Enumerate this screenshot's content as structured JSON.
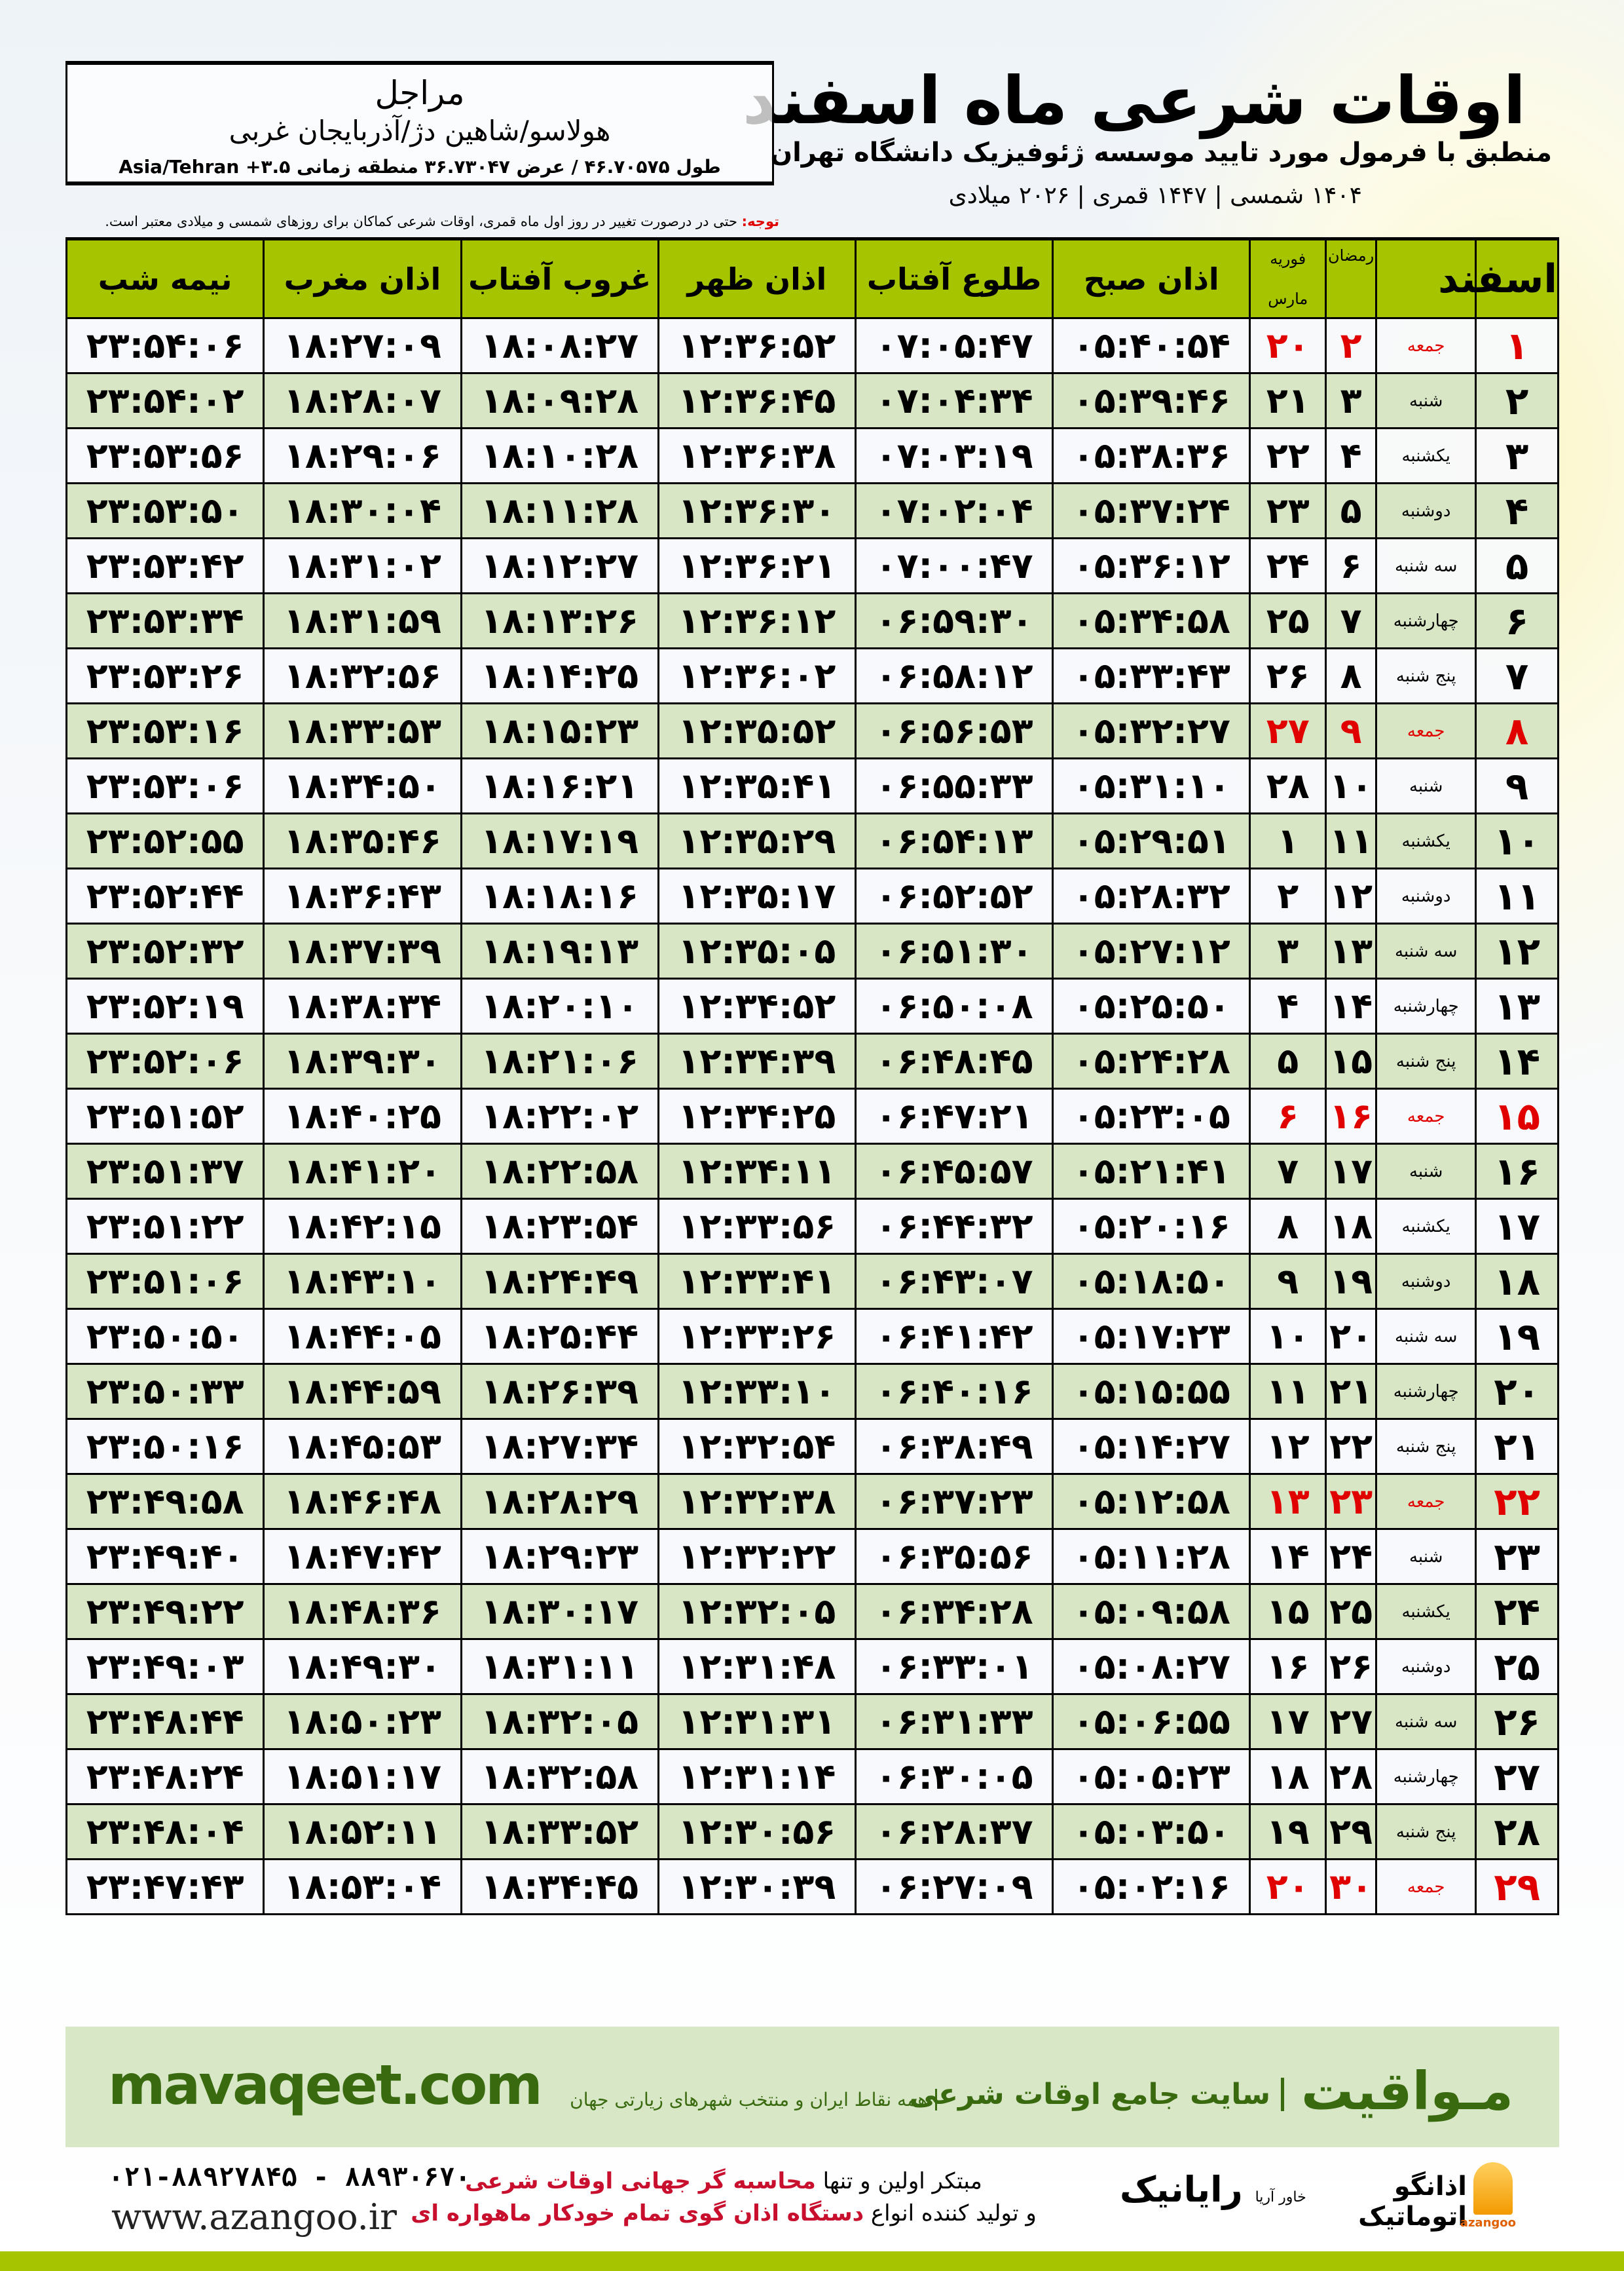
{
  "header": {
    "title": "اوقات شرعی ماه اسفند",
    "subtitle": "منطبق با فرمول مورد تایید موسسه ژئوفیزیک دانشگاه تهران",
    "dates": "۱۴۰۴ شمسی | ۱۴۴۷ قمری | ۲۰۲۶ میلادی"
  },
  "location": {
    "city": "مراجل",
    "region": "هولاسو/شاهین دژ/آذربایجان غربی",
    "coords": "طول ۴۶.۷۰۵۷۵ / عرض ۳۶.۷۳۰۴۷ منطقه زمانی ۳.۵+ Asia/Tehran"
  },
  "note": {
    "label": "توجه:",
    "text": " حتی در درصورت تغییر در روز اول ماه قمری، اوقات شرعی کماکان برای روزهای شمسی و میلادی معتبر است."
  },
  "table": {
    "headers": {
      "month": "اسفند",
      "ramadan": "رمضان",
      "greg_top": "فوریه",
      "greg_bottom": "مارس",
      "fajr": "اذان صبح",
      "sunrise": "طلوع آفتاب",
      "dhuhr": "اذان ظهر",
      "sunset": "غروب آفتاب",
      "maghrib": "اذان مغرب",
      "midnight": "نیمه شب"
    },
    "holiday_color": "#e00000",
    "rows": [
      {
        "day": "۱",
        "weekday": "جمعه",
        "ramadan": "۲",
        "greg": "۲۰",
        "fajr": "۰۵:۴۰:۵۴",
        "sunrise": "۰۷:۰۵:۴۷",
        "dhuhr": "۱۲:۳۶:۵۲",
        "sunset": "۱۸:۰۸:۲۷",
        "maghrib": "۱۸:۲۷:۰۹",
        "midnight": "۲۳:۵۴:۰۶",
        "holiday": true
      },
      {
        "day": "۲",
        "weekday": "شنبه",
        "ramadan": "۳",
        "greg": "۲۱",
        "fajr": "۰۵:۳۹:۴۶",
        "sunrise": "۰۷:۰۴:۳۴",
        "dhuhr": "۱۲:۳۶:۴۵",
        "sunset": "۱۸:۰۹:۲۸",
        "maghrib": "۱۸:۲۸:۰۷",
        "midnight": "۲۳:۵۴:۰۲",
        "holiday": false
      },
      {
        "day": "۳",
        "weekday": "یکشنبه",
        "ramadan": "۴",
        "greg": "۲۲",
        "fajr": "۰۵:۳۸:۳۶",
        "sunrise": "۰۷:۰۳:۱۹",
        "dhuhr": "۱۲:۳۶:۳۸",
        "sunset": "۱۸:۱۰:۲۸",
        "maghrib": "۱۸:۲۹:۰۶",
        "midnight": "۲۳:۵۳:۵۶",
        "holiday": false
      },
      {
        "day": "۴",
        "weekday": "دوشنبه",
        "ramadan": "۵",
        "greg": "۲۳",
        "fajr": "۰۵:۳۷:۲۴",
        "sunrise": "۰۷:۰۲:۰۴",
        "dhuhr": "۱۲:۳۶:۳۰",
        "sunset": "۱۸:۱۱:۲۸",
        "maghrib": "۱۸:۳۰:۰۴",
        "midnight": "۲۳:۵۳:۵۰",
        "holiday": false
      },
      {
        "day": "۵",
        "weekday": "سه شنبه",
        "ramadan": "۶",
        "greg": "۲۴",
        "fajr": "۰۵:۳۶:۱۲",
        "sunrise": "۰۷:۰۰:۴۷",
        "dhuhr": "۱۲:۳۶:۲۱",
        "sunset": "۱۸:۱۲:۲۷",
        "maghrib": "۱۸:۳۱:۰۲",
        "midnight": "۲۳:۵۳:۴۲",
        "holiday": false
      },
      {
        "day": "۶",
        "weekday": "چهارشنبه",
        "ramadan": "۷",
        "greg": "۲۵",
        "fajr": "۰۵:۳۴:۵۸",
        "sunrise": "۰۶:۵۹:۳۰",
        "dhuhr": "۱۲:۳۶:۱۲",
        "sunset": "۱۸:۱۳:۲۶",
        "maghrib": "۱۸:۳۱:۵۹",
        "midnight": "۲۳:۵۳:۳۴",
        "holiday": false
      },
      {
        "day": "۷",
        "weekday": "پنج شنبه",
        "ramadan": "۸",
        "greg": "۲۶",
        "fajr": "۰۵:۳۳:۴۳",
        "sunrise": "۰۶:۵۸:۱۲",
        "dhuhr": "۱۲:۳۶:۰۲",
        "sunset": "۱۸:۱۴:۲۵",
        "maghrib": "۱۸:۳۲:۵۶",
        "midnight": "۲۳:۵۳:۲۶",
        "holiday": false
      },
      {
        "day": "۸",
        "weekday": "جمعه",
        "ramadan": "۹",
        "greg": "۲۷",
        "fajr": "۰۵:۳۲:۲۷",
        "sunrise": "۰۶:۵۶:۵۳",
        "dhuhr": "۱۲:۳۵:۵۲",
        "sunset": "۱۸:۱۵:۲۳",
        "maghrib": "۱۸:۳۳:۵۳",
        "midnight": "۲۳:۵۳:۱۶",
        "holiday": true
      },
      {
        "day": "۹",
        "weekday": "شنبه",
        "ramadan": "۱۰",
        "greg": "۲۸",
        "fajr": "۰۵:۳۱:۱۰",
        "sunrise": "۰۶:۵۵:۳۳",
        "dhuhr": "۱۲:۳۵:۴۱",
        "sunset": "۱۸:۱۶:۲۱",
        "maghrib": "۱۸:۳۴:۵۰",
        "midnight": "۲۳:۵۳:۰۶",
        "holiday": false
      },
      {
        "day": "۱۰",
        "weekday": "یکشنبه",
        "ramadan": "۱۱",
        "greg": "۱",
        "fajr": "۰۵:۲۹:۵۱",
        "sunrise": "۰۶:۵۴:۱۳",
        "dhuhr": "۱۲:۳۵:۲۹",
        "sunset": "۱۸:۱۷:۱۹",
        "maghrib": "۱۸:۳۵:۴۶",
        "midnight": "۲۳:۵۲:۵۵",
        "holiday": false
      },
      {
        "day": "۱۱",
        "weekday": "دوشنبه",
        "ramadan": "۱۲",
        "greg": "۲",
        "fajr": "۰۵:۲۸:۳۲",
        "sunrise": "۰۶:۵۲:۵۲",
        "dhuhr": "۱۲:۳۵:۱۷",
        "sunset": "۱۸:۱۸:۱۶",
        "maghrib": "۱۸:۳۶:۴۳",
        "midnight": "۲۳:۵۲:۴۴",
        "holiday": false
      },
      {
        "day": "۱۲",
        "weekday": "سه شنبه",
        "ramadan": "۱۳",
        "greg": "۳",
        "fajr": "۰۵:۲۷:۱۲",
        "sunrise": "۰۶:۵۱:۳۰",
        "dhuhr": "۱۲:۳۵:۰۵",
        "sunset": "۱۸:۱۹:۱۳",
        "maghrib": "۱۸:۳۷:۳۹",
        "midnight": "۲۳:۵۲:۳۲",
        "holiday": false
      },
      {
        "day": "۱۳",
        "weekday": "چهارشنبه",
        "ramadan": "۱۴",
        "greg": "۴",
        "fajr": "۰۵:۲۵:۵۰",
        "sunrise": "۰۶:۵۰:۰۸",
        "dhuhr": "۱۲:۳۴:۵۲",
        "sunset": "۱۸:۲۰:۱۰",
        "maghrib": "۱۸:۳۸:۳۴",
        "midnight": "۲۳:۵۲:۱۹",
        "holiday": false
      },
      {
        "day": "۱۴",
        "weekday": "پنج شنبه",
        "ramadan": "۱۵",
        "greg": "۵",
        "fajr": "۰۵:۲۴:۲۸",
        "sunrise": "۰۶:۴۸:۴۵",
        "dhuhr": "۱۲:۳۴:۳۹",
        "sunset": "۱۸:۲۱:۰۶",
        "maghrib": "۱۸:۳۹:۳۰",
        "midnight": "۲۳:۵۲:۰۶",
        "holiday": false
      },
      {
        "day": "۱۵",
        "weekday": "جمعه",
        "ramadan": "۱۶",
        "greg": "۶",
        "fajr": "۰۵:۲۳:۰۵",
        "sunrise": "۰۶:۴۷:۲۱",
        "dhuhr": "۱۲:۳۴:۲۵",
        "sunset": "۱۸:۲۲:۰۲",
        "maghrib": "۱۸:۴۰:۲۵",
        "midnight": "۲۳:۵۱:۵۲",
        "holiday": true
      },
      {
        "day": "۱۶",
        "weekday": "شنبه",
        "ramadan": "۱۷",
        "greg": "۷",
        "fajr": "۰۵:۲۱:۴۱",
        "sunrise": "۰۶:۴۵:۵۷",
        "dhuhr": "۱۲:۳۴:۱۱",
        "sunset": "۱۸:۲۲:۵۸",
        "maghrib": "۱۸:۴۱:۲۰",
        "midnight": "۲۳:۵۱:۳۷",
        "holiday": false
      },
      {
        "day": "۱۷",
        "weekday": "یکشنبه",
        "ramadan": "۱۸",
        "greg": "۸",
        "fajr": "۰۵:۲۰:۱۶",
        "sunrise": "۰۶:۴۴:۳۲",
        "dhuhr": "۱۲:۳۳:۵۶",
        "sunset": "۱۸:۲۳:۵۴",
        "maghrib": "۱۸:۴۲:۱۵",
        "midnight": "۲۳:۵۱:۲۲",
        "holiday": false
      },
      {
        "day": "۱۸",
        "weekday": "دوشنبه",
        "ramadan": "۱۹",
        "greg": "۹",
        "fajr": "۰۵:۱۸:۵۰",
        "sunrise": "۰۶:۴۳:۰۷",
        "dhuhr": "۱۲:۳۳:۴۱",
        "sunset": "۱۸:۲۴:۴۹",
        "maghrib": "۱۸:۴۳:۱۰",
        "midnight": "۲۳:۵۱:۰۶",
        "holiday": false
      },
      {
        "day": "۱۹",
        "weekday": "سه شنبه",
        "ramadan": "۲۰",
        "greg": "۱۰",
        "fajr": "۰۵:۱۷:۲۳",
        "sunrise": "۰۶:۴۱:۴۲",
        "dhuhr": "۱۲:۳۳:۲۶",
        "sunset": "۱۸:۲۵:۴۴",
        "maghrib": "۱۸:۴۴:۰۵",
        "midnight": "۲۳:۵۰:۵۰",
        "holiday": false
      },
      {
        "day": "۲۰",
        "weekday": "چهارشنبه",
        "ramadan": "۲۱",
        "greg": "۱۱",
        "fajr": "۰۵:۱۵:۵۵",
        "sunrise": "۰۶:۴۰:۱۶",
        "dhuhr": "۱۲:۳۳:۱۰",
        "sunset": "۱۸:۲۶:۳۹",
        "maghrib": "۱۸:۴۴:۵۹",
        "midnight": "۲۳:۵۰:۳۳",
        "holiday": false
      },
      {
        "day": "۲۱",
        "weekday": "پنج شنبه",
        "ramadan": "۲۲",
        "greg": "۱۲",
        "fajr": "۰۵:۱۴:۲۷",
        "sunrise": "۰۶:۳۸:۴۹",
        "dhuhr": "۱۲:۳۲:۵۴",
        "sunset": "۱۸:۲۷:۳۴",
        "maghrib": "۱۸:۴۵:۵۳",
        "midnight": "۲۳:۵۰:۱۶",
        "holiday": false
      },
      {
        "day": "۲۲",
        "weekday": "جمعه",
        "ramadan": "۲۳",
        "greg": "۱۳",
        "fajr": "۰۵:۱۲:۵۸",
        "sunrise": "۰۶:۳۷:۲۳",
        "dhuhr": "۱۲:۳۲:۳۸",
        "sunset": "۱۸:۲۸:۲۹",
        "maghrib": "۱۸:۴۶:۴۸",
        "midnight": "۲۳:۴۹:۵۸",
        "holiday": true
      },
      {
        "day": "۲۳",
        "weekday": "شنبه",
        "ramadan": "۲۴",
        "greg": "۱۴",
        "fajr": "۰۵:۱۱:۲۸",
        "sunrise": "۰۶:۳۵:۵۶",
        "dhuhr": "۱۲:۳۲:۲۲",
        "sunset": "۱۸:۲۹:۲۳",
        "maghrib": "۱۸:۴۷:۴۲",
        "midnight": "۲۳:۴۹:۴۰",
        "holiday": false
      },
      {
        "day": "۲۴",
        "weekday": "یکشنبه",
        "ramadan": "۲۵",
        "greg": "۱۵",
        "fajr": "۰۵:۰۹:۵۸",
        "sunrise": "۰۶:۳۴:۲۸",
        "dhuhr": "۱۲:۳۲:۰۵",
        "sunset": "۱۸:۳۰:۱۷",
        "maghrib": "۱۸:۴۸:۳۶",
        "midnight": "۲۳:۴۹:۲۲",
        "holiday": false
      },
      {
        "day": "۲۵",
        "weekday": "دوشنبه",
        "ramadan": "۲۶",
        "greg": "۱۶",
        "fajr": "۰۵:۰۸:۲۷",
        "sunrise": "۰۶:۳۳:۰۱",
        "dhuhr": "۱۲:۳۱:۴۸",
        "sunset": "۱۸:۳۱:۱۱",
        "maghrib": "۱۸:۴۹:۳۰",
        "midnight": "۲۳:۴۹:۰۳",
        "holiday": false
      },
      {
        "day": "۲۶",
        "weekday": "سه شنبه",
        "ramadan": "۲۷",
        "greg": "۱۷",
        "fajr": "۰۵:۰۶:۵۵",
        "sunrise": "۰۶:۳۱:۳۳",
        "dhuhr": "۱۲:۳۱:۳۱",
        "sunset": "۱۸:۳۲:۰۵",
        "maghrib": "۱۸:۵۰:۲۳",
        "midnight": "۲۳:۴۸:۴۴",
        "holiday": false
      },
      {
        "day": "۲۷",
        "weekday": "چهارشنبه",
        "ramadan": "۲۸",
        "greg": "۱۸",
        "fajr": "۰۵:۰۵:۲۳",
        "sunrise": "۰۶:۳۰:۰۵",
        "dhuhr": "۱۲:۳۱:۱۴",
        "sunset": "۱۸:۳۲:۵۸",
        "maghrib": "۱۸:۵۱:۱۷",
        "midnight": "۲۳:۴۸:۲۴",
        "holiday": false
      },
      {
        "day": "۲۸",
        "weekday": "پنج شنبه",
        "ramadan": "۲۹",
        "greg": "۱۹",
        "fajr": "۰۵:۰۳:۵۰",
        "sunrise": "۰۶:۲۸:۳۷",
        "dhuhr": "۱۲:۳۰:۵۶",
        "sunset": "۱۸:۳۳:۵۲",
        "maghrib": "۱۸:۵۲:۱۱",
        "midnight": "۲۳:۴۸:۰۴",
        "holiday": false
      },
      {
        "day": "۲۹",
        "weekday": "جمعه",
        "ramadan": "۳۰",
        "greg": "۲۰",
        "fajr": "۰۵:۰۲:۱۶",
        "sunrise": "۰۶:۲۷:۰۹",
        "dhuhr": "۱۲:۳۰:۳۹",
        "sunset": "۱۸:۳۴:۴۵",
        "maghrib": "۱۸:۵۳:۰۴",
        "midnight": "۲۳:۴۷:۴۳",
        "holiday": true
      }
    ]
  },
  "footer": {
    "logo": "مـواقیت",
    "slogan": "سایت جامع اوقات شرعی",
    "sub": "همه نقاط ایران و منتخب شهرهای زیارتی جهان",
    "url": "mavaqeet.com",
    "brand_color": "#3a6a10",
    "phone": "۰۲۱-۸۸۹۲۷۸۴۵ - ۸۸۹۳۰۶۷۰",
    "website": "www.azangoo.ir",
    "promo_line1_a": "مبتکر اولین و تنها ",
    "promo_line1_b": "محاسبه گر جهانی اوقات شرعی",
    "promo_line2_a": "و تولید کننده انواع ",
    "promo_line2_b": "دستگاه اذان گوی تمام خودکار ماهواره ای",
    "rayanik": "رایانیک",
    "rayanik_sub": "خاور آریا",
    "azangoo": "اذانگو اتوماتیک",
    "azangoo_en": "azangoo"
  }
}
